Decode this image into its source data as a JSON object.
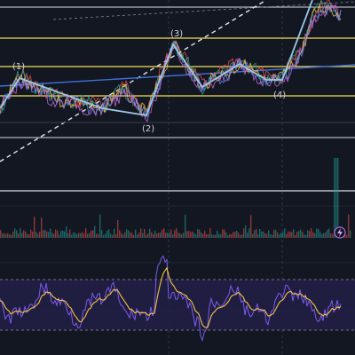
{
  "chart": {
    "type": "candlestick-with-indicators",
    "background": "#131722",
    "colors": {
      "wave_line": "#9cc6e6",
      "support": "#f5e05b",
      "trend": "#3f6ed8",
      "dashed_trend": "#e6e6e6",
      "oscillator_fast": "#7b5cf0",
      "oscillator_slow": "#f5c542",
      "oscillator_band": "#2a2550",
      "volume_up": "#26a69a",
      "volume_down": "#ef5350"
    },
    "wave_labels": [
      "(1)",
      "(2)",
      "(3)",
      "(4)"
    ],
    "icons": {
      "flash_marker": "lightning-icon"
    }
  }
}
